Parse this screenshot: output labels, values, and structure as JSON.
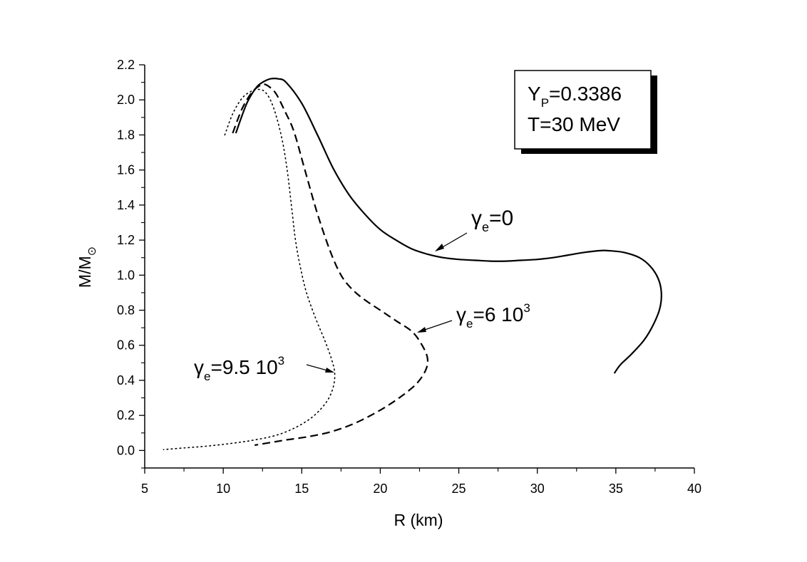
{
  "chart_data": {
    "type": "line",
    "title": "",
    "xlabel": "R (km)",
    "ylabel": {
      "main": "M/M",
      "sub": "⊙"
    },
    "xlim": [
      5,
      40
    ],
    "ylim": [
      -0.1,
      2.2
    ],
    "xticks": [
      5,
      10,
      15,
      20,
      25,
      30,
      35,
      40
    ],
    "yticks": [
      0.0,
      0.2,
      0.4,
      0.6,
      0.8,
      1.0,
      1.2,
      1.4,
      1.6,
      1.8,
      2.0,
      2.2
    ],
    "grid": false,
    "legend_box": {
      "line1_main": "Y",
      "line1_sub": "P",
      "line1_rest": "=0.3386",
      "line2": "T=30 MeV"
    },
    "series": [
      {
        "name": "γe=0",
        "style": "solid",
        "x": [
          10.8,
          11.5,
          12.1,
          12.5,
          13.0,
          13.5,
          14.0,
          15.0,
          16.0,
          17.0,
          18.0,
          19.0,
          20.0,
          21.0,
          22.0,
          23.0,
          24.0,
          25.0,
          26.0,
          27.0,
          28.0,
          29.0,
          30.0,
          31.0,
          32.0,
          33.0,
          34.0,
          34.5,
          35.5,
          36.5,
          37.2,
          37.7,
          37.9,
          37.8,
          37.4,
          36.8,
          36.0,
          35.3,
          34.9
        ],
        "y": [
          1.81,
          1.98,
          2.07,
          2.1,
          2.12,
          2.12,
          2.1,
          1.98,
          1.8,
          1.61,
          1.46,
          1.35,
          1.26,
          1.2,
          1.15,
          1.12,
          1.1,
          1.09,
          1.085,
          1.08,
          1.08,
          1.085,
          1.09,
          1.1,
          1.115,
          1.13,
          1.14,
          1.14,
          1.13,
          1.1,
          1.05,
          0.98,
          0.9,
          0.81,
          0.72,
          0.63,
          0.55,
          0.49,
          0.44
        ],
        "label": {
          "main": "γ",
          "sub": "e",
          "rest": "=0"
        }
      },
      {
        "name": "γe=6 10³",
        "style": "dashed",
        "x": [
          10.6,
          11.2,
          11.8,
          12.3,
          12.6,
          13.0,
          13.4,
          13.9,
          14.5,
          15.2,
          16.0,
          16.8,
          17.5,
          18.2,
          19.0,
          20.0,
          21.0,
          22.0,
          22.6,
          23.0,
          22.9,
          22.3,
          21.2,
          20.0,
          18.5,
          17.0,
          15.5,
          14.0,
          13.0,
          12.0
        ],
        "y": [
          1.81,
          1.95,
          2.04,
          2.08,
          2.09,
          2.07,
          2.03,
          1.94,
          1.82,
          1.6,
          1.35,
          1.14,
          1.0,
          0.92,
          0.86,
          0.8,
          0.74,
          0.68,
          0.61,
          0.53,
          0.46,
          0.38,
          0.3,
          0.23,
          0.16,
          0.11,
          0.08,
          0.06,
          0.045,
          0.03
        ],
        "label": {
          "main": "γ",
          "sub": "e",
          "rest": "=6 10",
          "sup": "3"
        }
      },
      {
        "name": "γe=9.5 10³",
        "style": "dotted",
        "x": [
          10.1,
          10.6,
          11.2,
          11.8,
          12.2,
          12.6,
          13.0,
          13.4,
          13.8,
          14.1,
          14.4,
          14.6,
          14.9,
          15.3,
          15.9,
          16.5,
          16.9,
          17.1,
          17.0,
          16.6,
          15.8,
          14.8,
          13.5,
          12.0,
          10.5,
          9.0,
          7.6,
          6.2
        ],
        "y": [
          1.8,
          1.92,
          2.01,
          2.05,
          2.06,
          2.05,
          2.0,
          1.9,
          1.75,
          1.58,
          1.35,
          1.2,
          1.05,
          0.9,
          0.75,
          0.62,
          0.52,
          0.44,
          0.36,
          0.28,
          0.2,
          0.14,
          0.09,
          0.06,
          0.04,
          0.025,
          0.015,
          0.005
        ],
        "label": {
          "main": "γ",
          "sub": "e",
          "rest": "=9.5 10",
          "sup": "3"
        }
      }
    ]
  }
}
